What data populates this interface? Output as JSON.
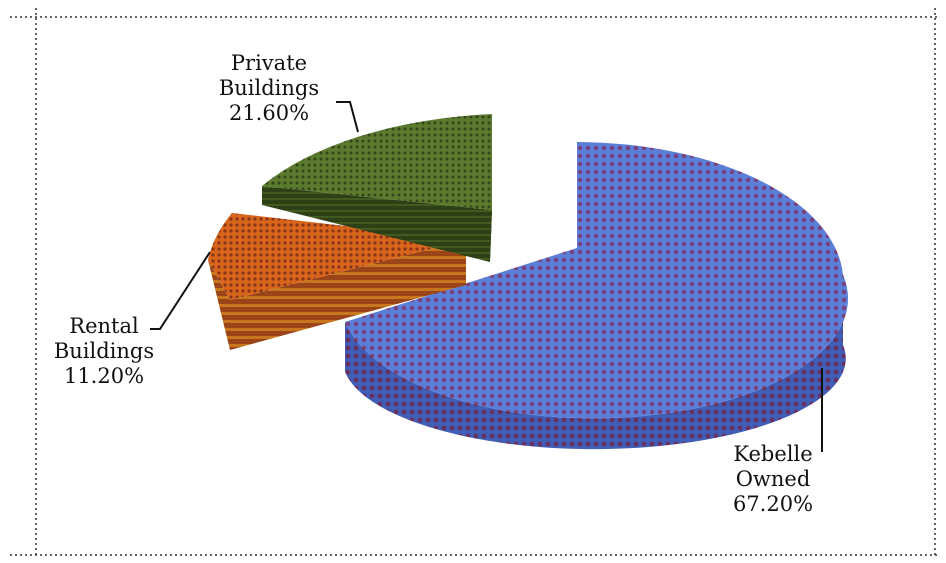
{
  "chart_data": {
    "type": "pie",
    "title": "",
    "categories": [
      "Kebelle Owned",
      "Rental Buildings",
      "Private Buildings"
    ],
    "values": [
      67.2,
      11.2,
      21.6
    ],
    "slices": [
      {
        "name": "Kebelle Owned",
        "value": 67.2,
        "label_lines": [
          "Kebelle",
          "Owned",
          "67.20%"
        ],
        "color": "#4f6fd1",
        "pattern_color": "#7a3a6a"
      },
      {
        "name": "Rental Buildings",
        "value": 11.2,
        "label_lines": [
          "Rental",
          "Buildings",
          "11.20%"
        ],
        "color": "#d4621a",
        "pattern_color": "#7a2a18"
      },
      {
        "name": "Private Buildings",
        "value": 21.6,
        "label_lines": [
          "Private",
          "Buildings",
          "21.60%"
        ],
        "color": "#5a7a2a",
        "pattern_color": "#2f3f18"
      }
    ],
    "legend": "none",
    "style": "3d-exploded-pie-with-texture"
  }
}
